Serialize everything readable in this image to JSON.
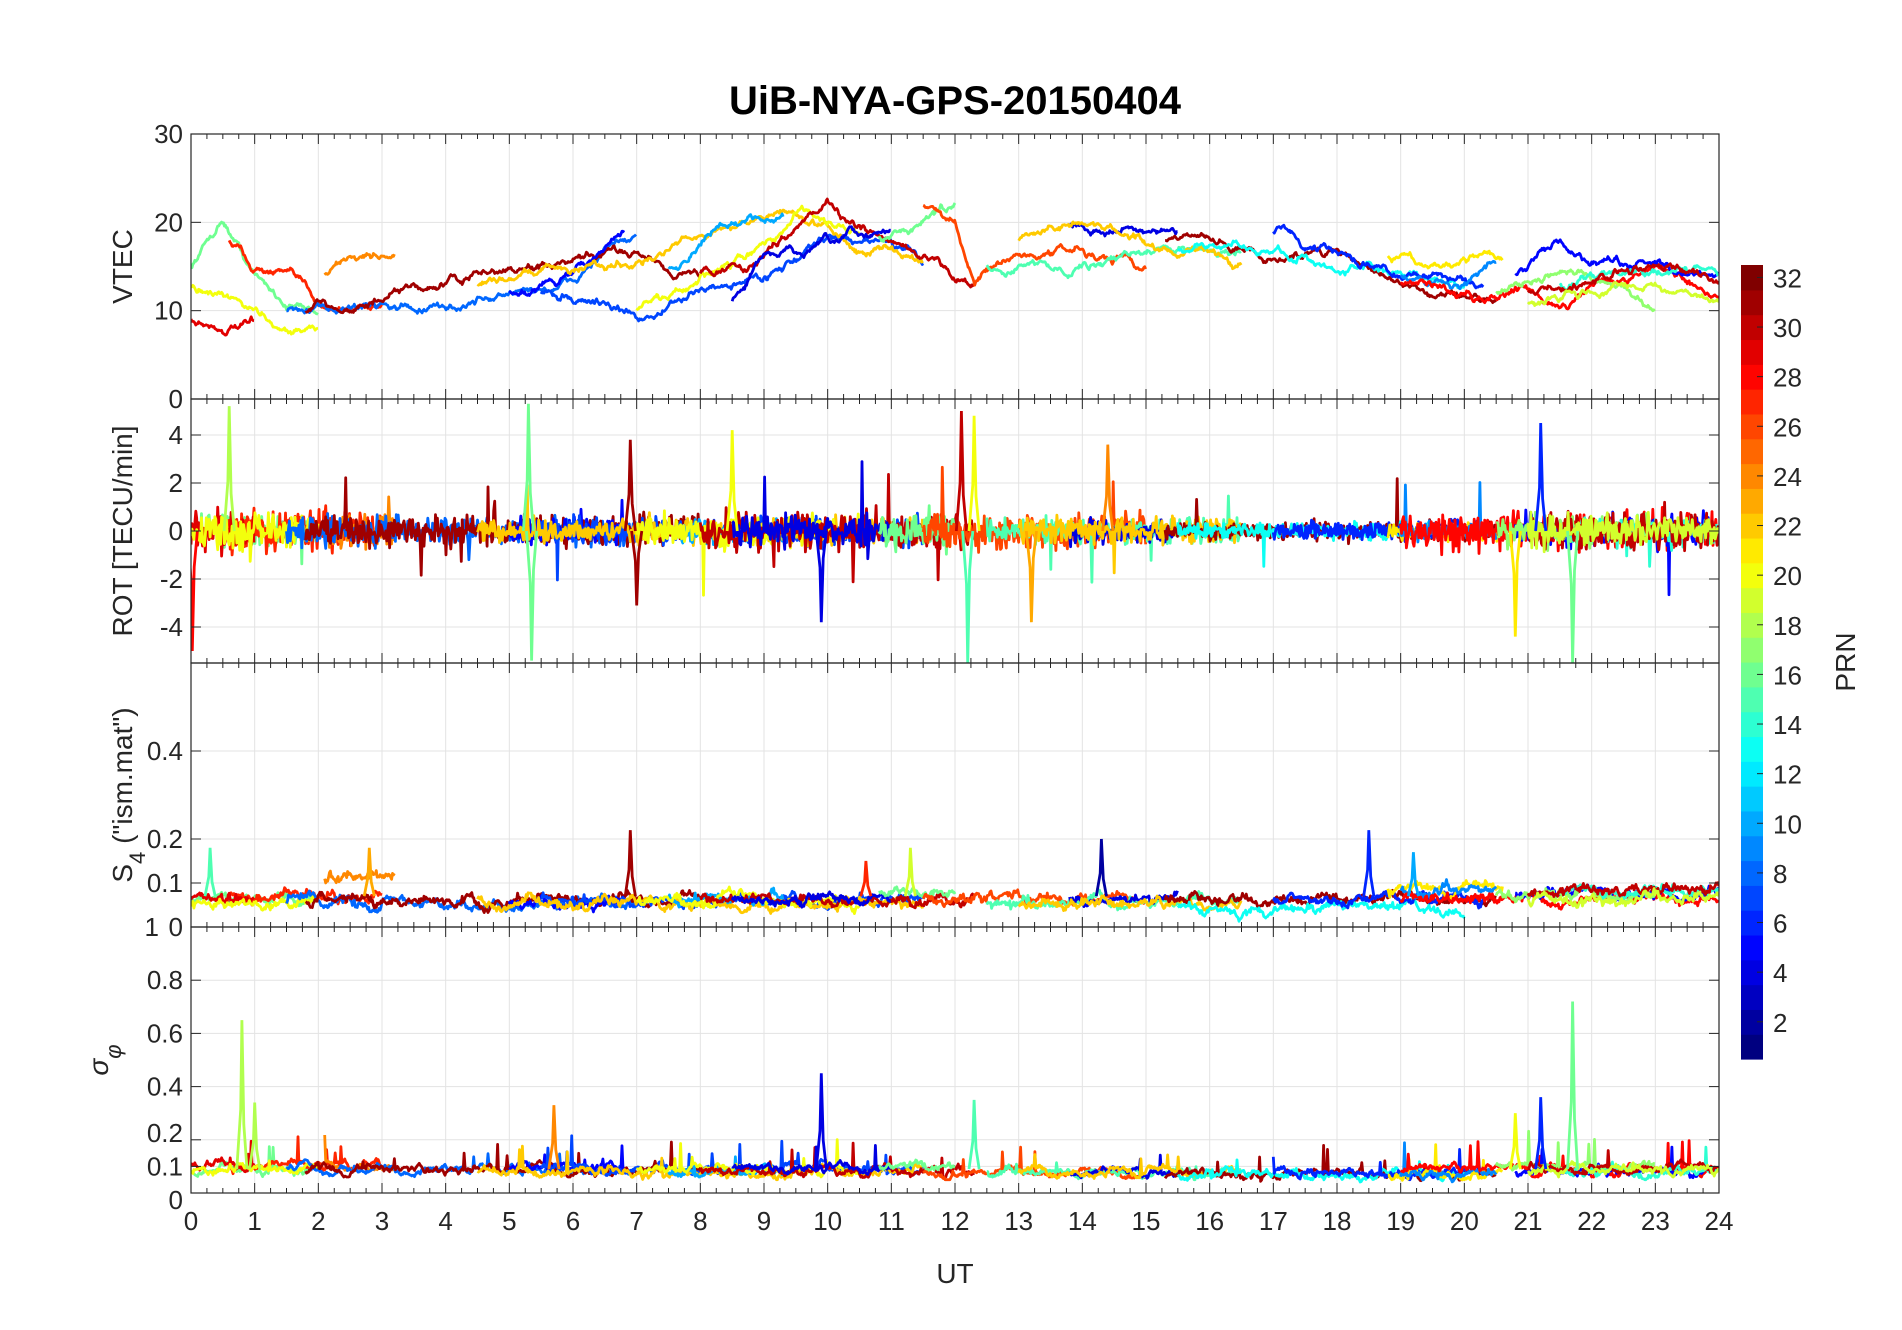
{
  "chart_data": {
    "type": "line",
    "title": "UiB-NYA-GPS-20150404",
    "xlabel": "UT",
    "xlim": [
      0,
      24
    ],
    "xticks": [
      "0",
      "1",
      "2",
      "3",
      "4",
      "5",
      "6",
      "7",
      "8",
      "9",
      "10",
      "11",
      "12",
      "13",
      "14",
      "15",
      "16",
      "17",
      "18",
      "19",
      "20",
      "21",
      "22",
      "23",
      "24"
    ],
    "panels": [
      {
        "id": "vtec",
        "ylabel": "VTEC",
        "ylim": [
          0,
          30
        ],
        "yticks": [
          0,
          10,
          20,
          30
        ],
        "ytick_labels": [
          "0",
          "10",
          "20",
          "30"
        ]
      },
      {
        "id": "rot",
        "ylabel": "ROT [TECU/min]",
        "ylim": [
          -5.5,
          5.5
        ],
        "yticks": [
          -4,
          -2,
          0,
          2,
          4
        ],
        "ytick_labels": [
          "-4",
          "-2",
          "0",
          "2",
          "4"
        ]
      },
      {
        "id": "s4",
        "ylabel": "S4 (\"ism.mat\")",
        "ylabel_main": "S",
        "ylabel_sub": "4",
        "ylabel_rest": " (\"ism.mat\")",
        "ylim": [
          0,
          0.6
        ],
        "yticks": [
          0,
          0.1,
          0.2,
          0.4
        ],
        "ytick_labels": [
          "0",
          "0.1",
          "0.2",
          "0.4"
        ]
      },
      {
        "id": "sigma",
        "ylabel": "σφ",
        "ylabel_main": "σ",
        "ylabel_sub": "φ",
        "ylim": [
          0,
          1
        ],
        "yticks": [
          0,
          0.1,
          0.2,
          0.4,
          0.6,
          0.8,
          1
        ],
        "ytick_labels": [
          "0",
          "0.1",
          "0.2",
          "0.4",
          "0.6",
          "0.8",
          "1"
        ]
      }
    ],
    "colorbar": {
      "label": "PRN",
      "range": [
        1,
        32
      ],
      "ticks": [
        "2",
        "4",
        "6",
        "8",
        "10",
        "12",
        "14",
        "16",
        "18",
        "20",
        "22",
        "24",
        "26",
        "28",
        "30",
        "32"
      ],
      "colormap": "jet"
    },
    "passes": [
      {
        "prn": 16,
        "vtec": [
          [
            0,
            15
          ],
          [
            0.5,
            20.5
          ],
          [
            1,
            14
          ],
          [
            1.5,
            11
          ],
          [
            2,
            10
          ]
        ],
        "rot": 1.2,
        "s4": 0.06,
        "sig": 0.09
      },
      {
        "prn": 27,
        "vtec": [
          [
            0.6,
            18
          ],
          [
            1,
            15
          ],
          [
            1.5,
            14
          ],
          [
            2,
            11
          ],
          [
            2.5,
            10
          ],
          [
            3,
            11
          ]
        ],
        "rot": 1.3,
        "s4": 0.07,
        "sig": 0.1
      },
      {
        "prn": 29,
        "vtec": [
          [
            0,
            9
          ],
          [
            0.5,
            8
          ],
          [
            1,
            8
          ]
        ],
        "rot": 1.5,
        "s4": 0.06,
        "sig": 0.1
      },
      {
        "prn": 20,
        "vtec": [
          [
            0,
            13
          ],
          [
            0.5,
            11
          ],
          [
            1,
            10
          ],
          [
            1.5,
            8
          ],
          [
            2,
            8
          ]
        ],
        "rot": 1.1,
        "s4": 0.05,
        "sig": 0.09
      },
      {
        "prn": 24,
        "vtec": [
          [
            2.1,
            14
          ],
          [
            2.5,
            16
          ],
          [
            3.2,
            16.5
          ]
        ],
        "rot": 1.0,
        "s4": 0.11,
        "sig": 0.1
      },
      {
        "prn": 8,
        "vtec": [
          [
            1.5,
            10
          ],
          [
            2,
            9.5
          ],
          [
            3,
            11
          ],
          [
            4,
            10
          ],
          [
            5,
            12
          ],
          [
            6,
            13
          ],
          [
            6.5,
            17
          ],
          [
            7,
            18
          ]
        ],
        "rot": 0.9,
        "s4": 0.05,
        "sig": 0.09
      },
      {
        "prn": 31,
        "vtec": [
          [
            1.8,
            10
          ],
          [
            3,
            11
          ],
          [
            4,
            13
          ],
          [
            5,
            14.5
          ],
          [
            6,
            15
          ],
          [
            7,
            17
          ],
          [
            7.5,
            15
          ],
          [
            8,
            14
          ]
        ],
        "rot": 1.0,
        "s4": 0.06,
        "sig": 0.09
      },
      {
        "prn": 5,
        "vtec": [
          [
            5,
            12
          ],
          [
            6,
            14
          ],
          [
            6.5,
            17
          ],
          [
            6.8,
            19
          ]
        ],
        "rot": 0.9,
        "s4": 0.05,
        "sig": 0.1
      },
      {
        "prn": 7,
        "vtec": [
          [
            5.5,
            12
          ],
          [
            6.5,
            11
          ],
          [
            7,
            9
          ],
          [
            8,
            12
          ],
          [
            9,
            14
          ],
          [
            10,
            18
          ],
          [
            11,
            18
          ],
          [
            11.5,
            15
          ]
        ],
        "rot": 0.9,
        "s4": 0.06,
        "sig": 0.09
      },
      {
        "prn": 22,
        "vtec": [
          [
            4.5,
            13
          ],
          [
            5.5,
            15
          ],
          [
            6.5,
            15
          ],
          [
            7.5,
            17
          ],
          [
            8.5,
            20
          ],
          [
            9.5,
            21
          ],
          [
            10.5,
            17
          ],
          [
            11.5,
            16
          ]
        ],
        "rot": 0.8,
        "s4": 0.05,
        "sig": 0.08
      },
      {
        "prn": 10,
        "vtec": [
          [
            7.5,
            15
          ],
          [
            8.5,
            20
          ],
          [
            9.3,
            21
          ]
        ],
        "rot": 0.8,
        "s4": 0.06,
        "sig": 0.08
      },
      {
        "prn": 20,
        "vtec": [
          [
            7,
            10
          ],
          [
            8,
            13
          ],
          [
            9,
            17
          ],
          [
            9.6,
            21
          ],
          [
            10.5,
            19
          ]
        ],
        "rot": 1.0,
        "s4": 0.06,
        "sig": 0.09
      },
      {
        "prn": 30,
        "vtec": [
          [
            8,
            14
          ],
          [
            9,
            16
          ],
          [
            9.6,
            21
          ],
          [
            10,
            22.5
          ],
          [
            10.5,
            19
          ],
          [
            11.5,
            16
          ],
          [
            12,
            14
          ],
          [
            12.3,
            13
          ]
        ],
        "rot": 1.1,
        "s4": 0.06,
        "sig": 0.08
      },
      {
        "prn": 4,
        "vtec": [
          [
            8.5,
            11
          ],
          [
            9,
            16
          ],
          [
            10,
            17
          ],
          [
            11,
            19
          ]
        ],
        "rot": 1.0,
        "s4": 0.06,
        "sig": 0.09
      },
      {
        "prn": 16,
        "vtec": [
          [
            10.8,
            18
          ],
          [
            11.5,
            20
          ],
          [
            12,
            22
          ]
        ],
        "rot": 1.2,
        "s4": 0.07,
        "sig": 0.1
      },
      {
        "prn": 26,
        "vtec": [
          [
            11.5,
            22
          ],
          [
            12,
            20
          ],
          [
            12.3,
            14
          ],
          [
            13,
            16
          ],
          [
            14,
            17
          ],
          [
            15,
            15
          ]
        ],
        "rot": 1.2,
        "s4": 0.06,
        "sig": 0.08
      },
      {
        "prn": 15,
        "vtec": [
          [
            12.5,
            15
          ],
          [
            13.5,
            15
          ],
          [
            14.5,
            16
          ],
          [
            15.5,
            17
          ],
          [
            16.5,
            17
          ]
        ],
        "rot": 0.8,
        "s4": 0.05,
        "sig": 0.08
      },
      {
        "prn": 4,
        "vtec": [
          [
            13.8,
            20
          ],
          [
            15,
            19
          ],
          [
            15.5,
            18
          ]
        ],
        "rot": 0.8,
        "s4": 0.06,
        "sig": 0.08
      },
      {
        "prn": 22,
        "vtec": [
          [
            13,
            18
          ],
          [
            14,
            20
          ],
          [
            15,
            18
          ],
          [
            16,
            16
          ],
          [
            16.5,
            15
          ]
        ],
        "rot": 0.8,
        "s4": 0.05,
        "sig": 0.08
      },
      {
        "prn": 31,
        "vtec": [
          [
            15.3,
            18
          ],
          [
            16,
            18
          ],
          [
            17,
            16
          ],
          [
            18,
            17
          ],
          [
            19,
            13
          ],
          [
            20,
            12
          ],
          [
            20.5,
            11
          ]
        ],
        "rot": 0.6,
        "s4": 0.06,
        "sig": 0.07
      },
      {
        "prn": 13,
        "vtec": [
          [
            15.5,
            17
          ],
          [
            16.5,
            17
          ],
          [
            17.5,
            16
          ],
          [
            18.5,
            14
          ],
          [
            19.5,
            13
          ],
          [
            20,
            13
          ]
        ],
        "rot": 0.5,
        "s4": 0.04,
        "sig": 0.07
      },
      {
        "prn": 6,
        "vtec": [
          [
            17,
            19
          ],
          [
            18,
            16
          ],
          [
            19,
            14
          ],
          [
            20,
            14
          ],
          [
            20.3,
            13
          ]
        ],
        "rot": 0.6,
        "s4": 0.06,
        "sig": 0.07
      },
      {
        "prn": 21,
        "vtec": [
          [
            18.8,
            16
          ],
          [
            19.5,
            15
          ],
          [
            20.3,
            17
          ],
          [
            20.6,
            16
          ]
        ],
        "rot": 0.6,
        "s4": 0.08,
        "sig": 0.07
      },
      {
        "prn": 9,
        "vtec": [
          [
            19,
            14
          ],
          [
            19.8,
            13
          ],
          [
            20.5,
            15
          ]
        ],
        "rot": 0.6,
        "s4": 0.08,
        "sig": 0.07
      },
      {
        "prn": 28,
        "vtec": [
          [
            19,
            13
          ],
          [
            20,
            12
          ],
          [
            20.5,
            11
          ],
          [
            21,
            13
          ],
          [
            21.5,
            11
          ],
          [
            22,
            13
          ],
          [
            23,
            15
          ],
          [
            24,
            11
          ]
        ],
        "rot": 1.2,
        "s4": 0.06,
        "sig": 0.09
      },
      {
        "prn": 5,
        "vtec": [
          [
            20.8,
            14
          ],
          [
            21.5,
            18
          ],
          [
            22,
            16
          ],
          [
            23,
            15
          ],
          [
            24,
            14
          ]
        ],
        "rot": 1.0,
        "s4": 0.07,
        "sig": 0.08
      },
      {
        "prn": 17,
        "vtec": [
          [
            20.5,
            12
          ],
          [
            21.5,
            14
          ],
          [
            22.5,
            12
          ],
          [
            23,
            10
          ]
        ],
        "rot": 1.0,
        "s4": 0.07,
        "sig": 0.1
      },
      {
        "prn": 14,
        "vtec": [
          [
            21.5,
            13
          ],
          [
            22.5,
            15
          ],
          [
            24,
            14
          ]
        ],
        "rot": 0.9,
        "s4": 0.08,
        "sig": 0.08
      },
      {
        "prn": 30,
        "vtec": [
          [
            21,
            12
          ],
          [
            22,
            13
          ],
          [
            23,
            16
          ],
          [
            24,
            13
          ]
        ],
        "rot": 1.2,
        "s4": 0.08,
        "sig": 0.09
      },
      {
        "prn": 19,
        "vtec": [
          [
            21,
            11
          ],
          [
            22,
            12
          ],
          [
            23,
            13
          ],
          [
            24,
            11
          ]
        ],
        "rot": 1.0,
        "s4": 0.06,
        "sig": 0.09
      }
    ],
    "spikes": [
      {
        "panel": "rot",
        "prn": 18,
        "t": 0.6,
        "v": 5.2
      },
      {
        "panel": "rot",
        "prn": 16,
        "t": 5.3,
        "v": 5.3
      },
      {
        "panel": "rot",
        "prn": 16,
        "t": 5.35,
        "v": -5.4
      },
      {
        "panel": "rot",
        "prn": 31,
        "t": 6.9,
        "v": 3.8
      },
      {
        "panel": "rot",
        "prn": 31,
        "t": 7.0,
        "v": -3.1
      },
      {
        "panel": "rot",
        "prn": 20,
        "t": 8.5,
        "v": 4.2
      },
      {
        "panel": "rot",
        "prn": 4,
        "t": 9.9,
        "v": -3.8
      },
      {
        "panel": "rot",
        "prn": 30,
        "t": 12.1,
        "v": 5.0
      },
      {
        "panel": "rot",
        "prn": 20,
        "t": 12.3,
        "v": 4.8
      },
      {
        "panel": "rot",
        "prn": 15,
        "t": 12.2,
        "v": -5.5
      },
      {
        "panel": "rot",
        "prn": 23,
        "t": 13.2,
        "v": -3.8
      },
      {
        "panel": "rot",
        "prn": 24,
        "t": 14.4,
        "v": 3.6
      },
      {
        "panel": "rot",
        "prn": 6,
        "t": 21.2,
        "v": 4.5
      },
      {
        "panel": "rot",
        "prn": 21,
        "t": 20.8,
        "v": -4.4
      },
      {
        "panel": "rot",
        "prn": 16,
        "t": 21.7,
        "v": -5.5
      },
      {
        "panel": "rot",
        "prn": 28,
        "t": 0.02,
        "v": -5.0
      },
      {
        "panel": "s4",
        "prn": 31,
        "t": 6.9,
        "v": 0.22
      },
      {
        "panel": "s4",
        "prn": 2,
        "t": 14.3,
        "v": 0.2
      },
      {
        "panel": "s4",
        "prn": 6,
        "t": 18.5,
        "v": 0.22
      },
      {
        "panel": "s4",
        "prn": 23,
        "t": 2.8,
        "v": 0.18
      },
      {
        "panel": "s4",
        "prn": 15,
        "t": 0.3,
        "v": 0.18
      },
      {
        "panel": "s4",
        "prn": 19,
        "t": 11.3,
        "v": 0.18
      },
      {
        "panel": "s4",
        "prn": 27,
        "t": 10.6,
        "v": 0.15
      },
      {
        "panel": "s4",
        "prn": 10,
        "t": 19.2,
        "v": 0.17
      },
      {
        "panel": "sigma",
        "prn": 18,
        "t": 0.8,
        "v": 0.65
      },
      {
        "panel": "sigma",
        "prn": 4,
        "t": 9.9,
        "v": 0.45
      },
      {
        "panel": "sigma",
        "prn": 16,
        "t": 21.7,
        "v": 0.72
      },
      {
        "panel": "sigma",
        "prn": 6,
        "t": 21.2,
        "v": 0.36
      },
      {
        "panel": "sigma",
        "prn": 20,
        "t": 20.8,
        "v": 0.3
      },
      {
        "panel": "sigma",
        "prn": 24,
        "t": 5.7,
        "v": 0.33
      },
      {
        "panel": "sigma",
        "prn": 15,
        "t": 12.3,
        "v": 0.35
      },
      {
        "panel": "sigma",
        "prn": 18,
        "t": 1.0,
        "v": 0.34
      }
    ]
  }
}
